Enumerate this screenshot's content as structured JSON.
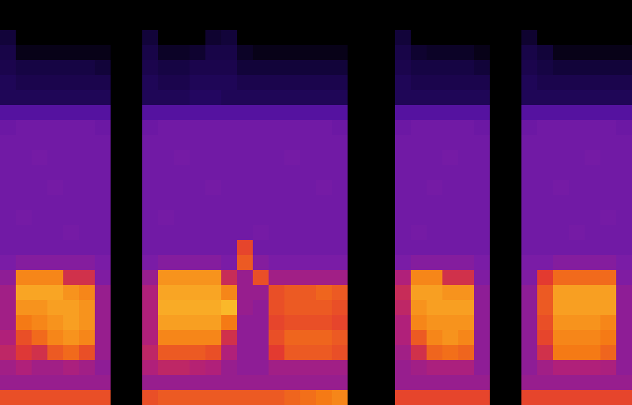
{
  "chart_data": {
    "type": "heatmap",
    "tick_labels": false,
    "grid": false,
    "zlim": [
      0,
      100
    ],
    "z": [
      [
        0,
        0,
        0,
        0,
        0,
        0,
        0,
        0,
        0,
        0,
        0,
        0,
        0,
        0,
        0,
        0,
        0,
        0,
        0,
        0,
        0,
        0,
        0,
        0,
        0,
        0,
        0,
        0,
        0,
        0,
        0,
        0,
        0,
        0,
        0,
        0,
        0,
        0,
        0,
        0
      ],
      [
        0,
        0,
        0,
        0,
        0,
        0,
        0,
        0,
        0,
        0,
        0,
        0,
        0,
        0,
        0,
        0,
        0,
        0,
        0,
        0,
        0,
        0,
        0,
        0,
        0,
        0,
        0,
        0,
        0,
        0,
        0,
        0,
        0,
        0,
        0,
        0,
        0,
        0,
        0,
        0
      ],
      [
        12,
        0,
        0,
        0,
        0,
        0,
        0,
        0,
        0,
        12,
        0,
        0,
        0,
        10,
        12,
        0,
        0,
        0,
        0,
        0,
        0,
        0,
        0,
        0,
        0,
        12,
        0,
        0,
        0,
        0,
        0,
        0,
        0,
        10,
        0,
        0,
        0,
        0,
        0,
        0
      ],
      [
        15,
        5,
        5,
        5,
        5,
        5,
        5,
        0,
        0,
        15,
        8,
        8,
        10,
        15,
        15,
        8,
        5,
        5,
        5,
        5,
        5,
        5,
        0,
        0,
        0,
        15,
        10,
        8,
        8,
        8,
        5,
        0,
        0,
        15,
        12,
        5,
        5,
        5,
        5,
        5
      ],
      [
        16,
        14,
        14,
        14,
        14,
        14,
        12,
        0,
        0,
        16,
        14,
        14,
        16,
        16,
        16,
        12,
        12,
        12,
        12,
        12,
        12,
        12,
        0,
        0,
        0,
        16,
        14,
        14,
        14,
        14,
        12,
        0,
        0,
        16,
        14,
        12,
        12,
        12,
        12,
        12
      ],
      [
        18,
        16,
        16,
        16,
        16,
        16,
        16,
        0,
        0,
        18,
        16,
        16,
        18,
        18,
        18,
        16,
        16,
        16,
        16,
        16,
        16,
        16,
        0,
        0,
        0,
        18,
        16,
        16,
        16,
        16,
        16,
        0,
        0,
        18,
        16,
        16,
        16,
        16,
        16,
        16
      ],
      [
        18,
        18,
        18,
        18,
        18,
        18,
        18,
        0,
        0,
        18,
        18,
        18,
        20,
        20,
        18,
        18,
        18,
        18,
        18,
        18,
        18,
        18,
        0,
        0,
        0,
        18,
        18,
        18,
        18,
        18,
        18,
        0,
        0,
        18,
        18,
        18,
        18,
        18,
        18,
        18
      ],
      [
        36,
        36,
        36,
        36,
        36,
        36,
        36,
        0,
        0,
        36,
        36,
        36,
        36,
        36,
        36,
        36,
        36,
        36,
        36,
        36,
        36,
        36,
        0,
        0,
        0,
        36,
        36,
        36,
        36,
        36,
        36,
        0,
        0,
        36,
        36,
        36,
        36,
        36,
        36,
        36
      ],
      [
        41,
        42,
        42,
        42,
        42,
        42,
        41,
        0,
        0,
        41,
        42,
        42,
        42,
        42,
        42,
        42,
        42,
        42,
        42,
        42,
        42,
        41,
        0,
        0,
        0,
        41,
        42,
        42,
        42,
        42,
        41,
        0,
        0,
        41,
        42,
        42,
        42,
        42,
        42,
        41
      ],
      [
        42,
        42,
        42,
        42,
        42,
        42,
        42,
        0,
        0,
        42,
        42,
        42,
        42,
        42,
        42,
        42,
        42,
        42,
        42,
        42,
        42,
        42,
        0,
        0,
        0,
        42,
        42,
        42,
        42,
        42,
        42,
        0,
        0,
        42,
        42,
        42,
        42,
        42,
        42,
        42
      ],
      [
        42,
        42,
        43,
        42,
        42,
        42,
        42,
        0,
        0,
        42,
        42,
        43,
        42,
        42,
        42,
        42,
        42,
        42,
        43,
        42,
        42,
        42,
        0,
        0,
        0,
        42,
        42,
        42,
        43,
        42,
        42,
        0,
        0,
        42,
        42,
        42,
        42,
        43,
        42,
        42
      ],
      [
        42,
        42,
        42,
        42,
        42,
        42,
        42,
        0,
        0,
        42,
        42,
        42,
        42,
        42,
        42,
        42,
        42,
        42,
        42,
        42,
        42,
        42,
        0,
        0,
        0,
        42,
        42,
        42,
        42,
        42,
        42,
        0,
        0,
        42,
        42,
        42,
        42,
        42,
        42,
        42
      ],
      [
        42,
        42,
        42,
        43,
        42,
        42,
        42,
        0,
        0,
        42,
        42,
        42,
        42,
        43,
        42,
        42,
        42,
        42,
        42,
        42,
        43,
        42,
        0,
        0,
        0,
        42,
        42,
        43,
        42,
        42,
        42,
        0,
        0,
        42,
        42,
        43,
        42,
        42,
        42,
        42
      ],
      [
        42,
        42,
        42,
        42,
        42,
        42,
        42,
        0,
        0,
        42,
        42,
        42,
        42,
        42,
        42,
        42,
        42,
        42,
        42,
        42,
        42,
        42,
        0,
        0,
        0,
        42,
        42,
        42,
        42,
        42,
        42,
        0,
        0,
        42,
        42,
        42,
        42,
        42,
        42,
        42
      ],
      [
        42,
        43,
        42,
        42,
        42,
        42,
        42,
        0,
        0,
        42,
        43,
        42,
        42,
        42,
        42,
        42,
        42,
        42,
        42,
        42,
        42,
        42,
        0,
        0,
        0,
        42,
        42,
        42,
        42,
        42,
        42,
        0,
        0,
        42,
        42,
        42,
        42,
        42,
        43,
        42
      ],
      [
        42,
        42,
        42,
        42,
        43,
        42,
        42,
        0,
        0,
        42,
        42,
        42,
        42,
        42,
        42,
        42,
        43,
        42,
        42,
        42,
        42,
        42,
        0,
        0,
        0,
        42,
        43,
        42,
        42,
        42,
        42,
        0,
        0,
        42,
        42,
        42,
        43,
        42,
        42,
        42
      ],
      [
        42,
        42,
        42,
        42,
        42,
        42,
        42,
        0,
        0,
        42,
        42,
        42,
        42,
        42,
        42,
        68,
        42,
        42,
        42,
        42,
        42,
        42,
        0,
        0,
        0,
        42,
        42,
        42,
        42,
        42,
        42,
        0,
        0,
        42,
        42,
        42,
        42,
        42,
        42,
        42
      ],
      [
        44,
        46,
        46,
        46,
        46,
        46,
        44,
        0,
        0,
        44,
        46,
        46,
        46,
        46,
        44,
        72,
        46,
        44,
        44,
        44,
        44,
        44,
        0,
        0,
        0,
        44,
        46,
        46,
        46,
        46,
        44,
        0,
        0,
        44,
        44,
        46,
        46,
        46,
        46,
        44
      ],
      [
        48,
        80,
        80,
        80,
        62,
        62,
        45,
        0,
        0,
        50,
        82,
        82,
        82,
        82,
        60,
        50,
        70,
        52,
        52,
        52,
        52,
        52,
        0,
        0,
        0,
        55,
        80,
        80,
        62,
        62,
        45,
        0,
        0,
        45,
        66,
        75,
        75,
        75,
        75,
        45
      ],
      [
        52,
        85,
        85,
        85,
        82,
        80,
        50,
        0,
        0,
        55,
        85,
        85,
        85,
        85,
        80,
        50,
        50,
        70,
        72,
        72,
        74,
        72,
        0,
        0,
        0,
        60,
        84,
        84,
        82,
        82,
        48,
        0,
        0,
        48,
        72,
        84,
        84,
        84,
        84,
        48
      ],
      [
        52,
        82,
        82,
        84,
        84,
        82,
        50,
        0,
        0,
        55,
        86,
        86,
        86,
        86,
        88,
        50,
        48,
        70,
        72,
        72,
        72,
        70,
        0,
        0,
        0,
        58,
        82,
        84,
        84,
        84,
        48,
        0,
        0,
        48,
        72,
        84,
        84,
        84,
        84,
        48
      ],
      [
        52,
        78,
        80,
        82,
        84,
        82,
        50,
        0,
        0,
        55,
        84,
        84,
        84,
        84,
        78,
        48,
        48,
        68,
        70,
        70,
        70,
        68,
        0,
        0,
        0,
        55,
        80,
        82,
        82,
        82,
        48,
        0,
        0,
        48,
        70,
        82,
        82,
        82,
        80,
        48
      ],
      [
        55,
        70,
        75,
        80,
        82,
        80,
        50,
        0,
        0,
        55,
        80,
        80,
        80,
        80,
        62,
        48,
        48,
        70,
        74,
        74,
        74,
        72,
        0,
        0,
        0,
        55,
        72,
        80,
        82,
        80,
        48,
        0,
        0,
        48,
        68,
        80,
        80,
        80,
        78,
        48
      ],
      [
        58,
        65,
        62,
        72,
        75,
        70,
        50,
        0,
        0,
        58,
        72,
        72,
        72,
        70,
        55,
        48,
        48,
        66,
        72,
        72,
        72,
        70,
        0,
        0,
        0,
        52,
        62,
        74,
        76,
        74,
        48,
        0,
        0,
        48,
        62,
        78,
        78,
        78,
        74,
        48
      ],
      [
        52,
        55,
        52,
        52,
        54,
        52,
        48,
        0,
        0,
        55,
        58,
        58,
        56,
        55,
        50,
        48,
        48,
        52,
        52,
        52,
        52,
        52,
        0,
        0,
        0,
        50,
        52,
        54,
        54,
        54,
        48,
        0,
        0,
        48,
        52,
        55,
        55,
        55,
        54,
        48
      ],
      [
        50,
        50,
        50,
        50,
        50,
        50,
        50,
        0,
        0,
        50,
        50,
        50,
        50,
        50,
        50,
        50,
        50,
        50,
        50,
        50,
        50,
        50,
        0,
        0,
        0,
        50,
        50,
        50,
        50,
        50,
        50,
        0,
        0,
        50,
        50,
        50,
        50,
        50,
        50,
        50
      ],
      [
        70,
        70,
        70,
        70,
        70,
        70,
        70,
        0,
        0,
        70,
        72,
        72,
        72,
        72,
        72,
        72,
        72,
        72,
        74,
        76,
        78,
        80,
        0,
        0,
        0,
        68,
        68,
        68,
        68,
        68,
        68,
        0,
        0,
        68,
        68,
        68,
        68,
        68,
        68,
        68
      ]
    ]
  }
}
